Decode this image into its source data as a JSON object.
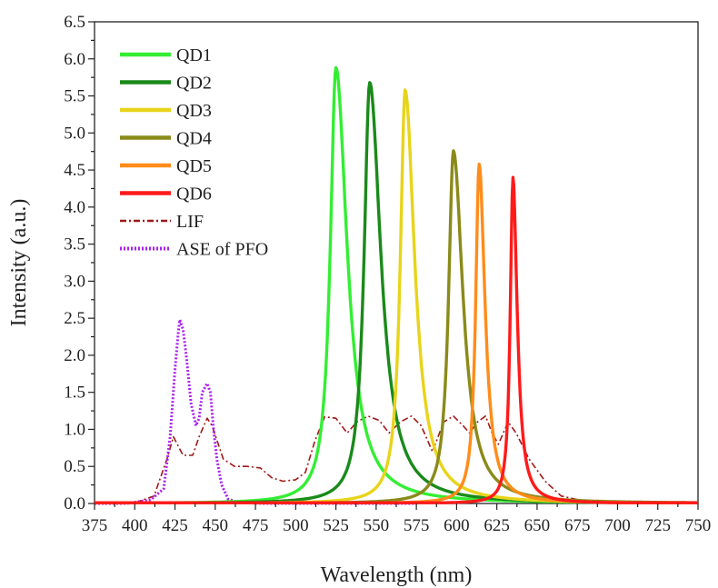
{
  "chart_data": {
    "type": "line",
    "xlabel": "Wavelength (nm)",
    "ylabel": "Intensity (a.u.)",
    "xlim": [
      375,
      750
    ],
    "ylim": [
      0.0,
      6.5
    ],
    "x_ticks": [
      "375",
      "400",
      "425",
      "450",
      "475",
      "500",
      "525",
      "550",
      "575",
      "600",
      "625",
      "650",
      "675",
      "700",
      "725",
      "750"
    ],
    "y_ticks": [
      "0.0",
      "0.5",
      "1.0",
      "1.5",
      "2.0",
      "2.5",
      "3.0",
      "3.5",
      "4.0",
      "4.5",
      "5.0",
      "5.5",
      "6.0",
      "6.5"
    ],
    "legend_position": "top-left",
    "grid": false,
    "series": [
      {
        "name": "QD1",
        "color": "#33ee33",
        "style": "solid",
        "peak_x": 525,
        "peak_y": 5.88
      },
      {
        "name": "QD2",
        "color": "#1a8a1a",
        "style": "solid",
        "peak_x": 546,
        "peak_y": 5.68
      },
      {
        "name": "QD3",
        "color": "#e8d41a",
        "style": "solid",
        "peak_x": 568,
        "peak_y": 5.58
      },
      {
        "name": "QD4",
        "color": "#8a8a1a",
        "style": "solid",
        "peak_x": 598,
        "peak_y": 4.76
      },
      {
        "name": "QD5",
        "color": "#ff8c1a",
        "style": "solid",
        "peak_x": 614,
        "peak_y": 4.58
      },
      {
        "name": "QD6",
        "color": "#ff1a1a",
        "style": "solid",
        "peak_x": 635,
        "peak_y": 4.4
      },
      {
        "name": "LIF",
        "color": "#a01818",
        "style": "dash-dot",
        "points": [
          [
            375,
            0.0
          ],
          [
            400,
            0.01
          ],
          [
            412,
            0.1
          ],
          [
            420,
            0.6
          ],
          [
            424,
            0.9
          ],
          [
            430,
            0.65
          ],
          [
            436,
            0.65
          ],
          [
            440,
            0.9
          ],
          [
            445,
            1.15
          ],
          [
            448,
            1.05
          ],
          [
            455,
            0.6
          ],
          [
            462,
            0.5
          ],
          [
            470,
            0.5
          ],
          [
            478,
            0.48
          ],
          [
            485,
            0.35
          ],
          [
            492,
            0.3
          ],
          [
            500,
            0.32
          ],
          [
            506,
            0.42
          ],
          [
            512,
            0.85
          ],
          [
            518,
            1.17
          ],
          [
            525,
            1.15
          ],
          [
            532,
            0.95
          ],
          [
            538,
            1.1
          ],
          [
            545,
            1.18
          ],
          [
            552,
            1.12
          ],
          [
            558,
            0.95
          ],
          [
            565,
            1.1
          ],
          [
            572,
            1.18
          ],
          [
            578,
            1.05
          ],
          [
            585,
            0.7
          ],
          [
            592,
            1.1
          ],
          [
            598,
            1.18
          ],
          [
            604,
            1.05
          ],
          [
            608,
            0.95
          ],
          [
            613,
            1.1
          ],
          [
            618,
            1.18
          ],
          [
            622,
            0.95
          ],
          [
            626,
            0.8
          ],
          [
            632,
            1.1
          ],
          [
            637,
            0.95
          ],
          [
            645,
            0.6
          ],
          [
            655,
            0.3
          ],
          [
            665,
            0.1
          ],
          [
            680,
            0.03
          ],
          [
            700,
            0.01
          ],
          [
            750,
            0.0
          ]
        ]
      },
      {
        "name": "ASE of PFO",
        "color": "#aa22ee",
        "style": "dotted",
        "points": [
          [
            375,
            0.0
          ],
          [
            395,
            0.0
          ],
          [
            410,
            0.05
          ],
          [
            418,
            0.2
          ],
          [
            422,
            0.9
          ],
          [
            425,
            1.8
          ],
          [
            427,
            2.3
          ],
          [
            428,
            2.48
          ],
          [
            430,
            2.35
          ],
          [
            432,
            2.0
          ],
          [
            435,
            1.35
          ],
          [
            438,
            1.05
          ],
          [
            440,
            1.15
          ],
          [
            442,
            1.5
          ],
          [
            445,
            1.62
          ],
          [
            447,
            1.5
          ],
          [
            449,
            1.0
          ],
          [
            451,
            0.6
          ],
          [
            454,
            0.25
          ],
          [
            458,
            0.06
          ],
          [
            465,
            0.01
          ],
          [
            480,
            0.0
          ],
          [
            575,
            0.0
          ]
        ]
      }
    ]
  }
}
